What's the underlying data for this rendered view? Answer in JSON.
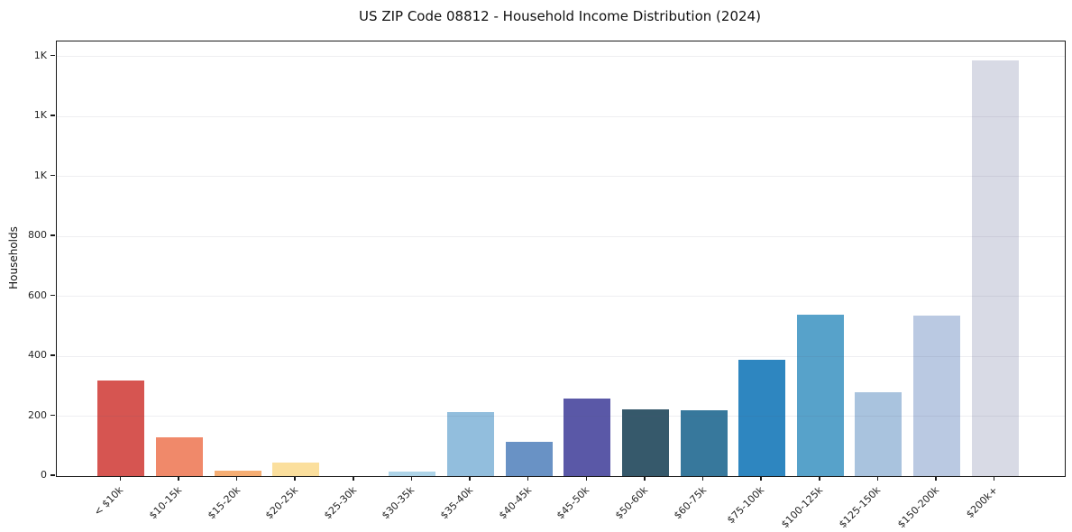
{
  "chart_data": {
    "type": "bar",
    "title": "US ZIP Code 08812 - Household Income Distribution (2024)",
    "xlabel": "",
    "ylabel": "Households",
    "categories": [
      "< $10k",
      "$10-15k",
      "$15-20k",
      "$20-25k",
      "$25-30k",
      "$30-35k",
      "$35-40k",
      "$40-45k",
      "$45-50k",
      "$50-60k",
      "$60-75k",
      "$75-100k",
      "$100-125k",
      "$125-150k",
      "$150-200k",
      "$200k+"
    ],
    "values": [
      318,
      130,
      18,
      45,
      0,
      15,
      214,
      113,
      259,
      224,
      221,
      388,
      540,
      281,
      536,
      1388
    ],
    "bar_colors": [
      "#d65551",
      "#f0896a",
      "#f5ad73",
      "#fbdf9d",
      "#fce8ae",
      "#aed4e8",
      "#92bedd",
      "#6992c5",
      "#5a58a7",
      "#36596b",
      "#37789c",
      "#2e86c0",
      "#57a2ca",
      "#a9c3de",
      "#bac9e2",
      "#d8dae5"
    ],
    "yticks": [
      {
        "value": 0,
        "label": "0"
      },
      {
        "value": 200,
        "label": "200"
      },
      {
        "value": 400,
        "label": "400"
      },
      {
        "value": 600,
        "label": "600"
      },
      {
        "value": 800,
        "label": "800"
      },
      {
        "value": 1000,
        "label": "1K"
      },
      {
        "value": 1200,
        "label": "1K"
      },
      {
        "value": 1400,
        "label": "1K"
      }
    ],
    "ylim": [
      0,
      1450
    ],
    "grid": "horizontal-only",
    "legend": "none"
  }
}
